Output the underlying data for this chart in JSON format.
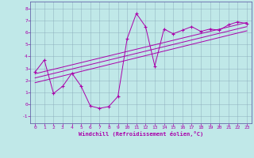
{
  "xlabel": "Windchill (Refroidissement éolien,°C)",
  "bg_color": "#c0e8e8",
  "line_color": "#aa00aa",
  "grid_color": "#88aabb",
  "xlim": [
    -0.5,
    23.5
  ],
  "ylim": [
    -1.6,
    8.6
  ],
  "yticks": [
    -1,
    0,
    1,
    2,
    3,
    4,
    5,
    6,
    7,
    8
  ],
  "xticks": [
    0,
    1,
    2,
    3,
    4,
    5,
    6,
    7,
    8,
    9,
    10,
    11,
    12,
    13,
    14,
    15,
    16,
    17,
    18,
    19,
    20,
    21,
    22,
    23
  ],
  "scatter_x": [
    0,
    1,
    2,
    3,
    4,
    5,
    6,
    7,
    8,
    9,
    10,
    11,
    12,
    13,
    14,
    15,
    16,
    17,
    18,
    19,
    20,
    21,
    22,
    23
  ],
  "scatter_y": [
    2.7,
    3.7,
    0.9,
    1.5,
    2.6,
    1.5,
    -0.15,
    -0.35,
    -0.2,
    0.65,
    5.5,
    7.6,
    6.5,
    3.2,
    6.3,
    5.9,
    6.2,
    6.5,
    6.1,
    6.3,
    6.2,
    6.65,
    6.9,
    6.75
  ],
  "line1_x": [
    0,
    23
  ],
  "line1_y": [
    2.55,
    6.85
  ],
  "line2_x": [
    0,
    23
  ],
  "line2_y": [
    2.2,
    6.5
  ],
  "line3_x": [
    0,
    23
  ],
  "line3_y": [
    1.8,
    6.15
  ]
}
